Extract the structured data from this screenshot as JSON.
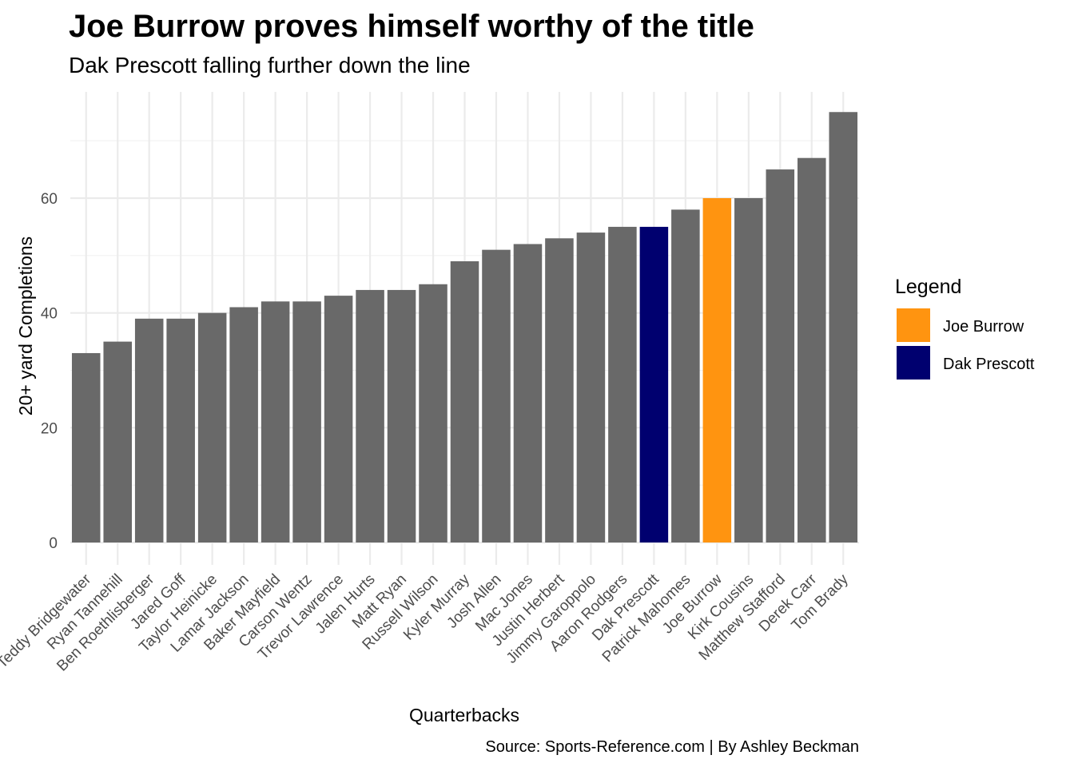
{
  "chart_data": {
    "type": "bar",
    "title": "Joe Burrow proves himself worthy of the title",
    "subtitle": "Dak Prescott falling further down the line",
    "xlabel": "Quarterbacks",
    "ylabel": "20+ yard Completions",
    "caption": "Source: Sports-Reference.com | By Ashley Beckman",
    "categories": [
      "Teddy Bridgewater",
      "Ryan Tannehill",
      "Ben Roethlisberger",
      "Jared Goff",
      "Taylor Heinicke",
      "Lamar Jackson",
      "Baker Mayfield",
      "Carson Wentz",
      "Trevor Lawrence",
      "Jalen Hurts",
      "Matt Ryan",
      "Russell Wilson",
      "Kyler Murray",
      "Josh Allen",
      "Mac Jones",
      "Justin Herbert",
      "Jimmy Garoppolo",
      "Aaron Rodgers",
      "Dak Prescott",
      "Patrick Mahomes",
      "Joe Burrow",
      "Kirk Cousins",
      "Matthew Stafford",
      "Derek Carr",
      "Tom Brady"
    ],
    "values": [
      33,
      35,
      39,
      39,
      40,
      41,
      42,
      42,
      43,
      44,
      44,
      45,
      49,
      51,
      52,
      53,
      54,
      55,
      55,
      58,
      60,
      60,
      65,
      67,
      75
    ],
    "ylim": [
      0,
      78
    ],
    "yticks": [
      0,
      20,
      40,
      60
    ],
    "grid": true,
    "default_color": "#696969",
    "highlights": [
      {
        "name": "Joe Burrow",
        "color": "#FF9410"
      },
      {
        "name": "Dak Prescott",
        "color": "#00006F"
      }
    ],
    "legend": {
      "title": "Legend",
      "position": "right",
      "entries": [
        {
          "label": "Joe Burrow",
          "color": "#FF9410"
        },
        {
          "label": "Dak Prescott",
          "color": "#00006F"
        }
      ]
    }
  }
}
